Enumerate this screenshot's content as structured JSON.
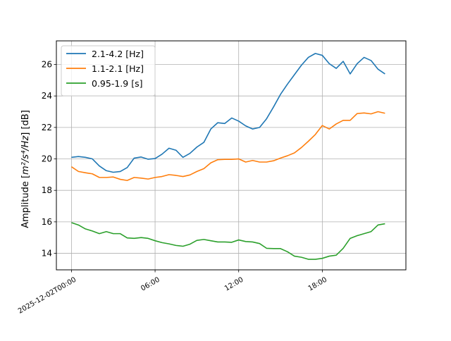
{
  "chart_data": {
    "type": "line",
    "ylabel_main": "Amplitude [",
    "ylabel_math": "m²/s⁴/Hz",
    "ylabel_unit": "] [dB]",
    "xlabel": "",
    "x_axis_type": "datetime",
    "x_ticks": [
      {
        "value": "2025-12-02T00:00",
        "label": "2025-12-02T00:00"
      },
      {
        "value": "2025-12-02T06:00",
        "label": "06:00"
      },
      {
        "value": "2025-12-02T12:00",
        "label": "12:00"
      },
      {
        "value": "2025-12-02T18:00",
        "label": "18:00"
      }
    ],
    "xlim": [
      "2025-12-01T22:55",
      "2025-12-03T00:00"
    ],
    "ylim": [
      12.95,
      27.5
    ],
    "y_ticks": [
      14,
      16,
      18,
      20,
      22,
      24,
      26
    ],
    "grid": true,
    "legend_position": "upper-left",
    "x": [
      "2025-12-02T00:00",
      "2025-12-02T00:30",
      "2025-12-02T01:00",
      "2025-12-02T01:30",
      "2025-12-02T02:00",
      "2025-12-02T02:30",
      "2025-12-02T03:00",
      "2025-12-02T03:30",
      "2025-12-02T04:00",
      "2025-12-02T04:30",
      "2025-12-02T05:00",
      "2025-12-02T05:30",
      "2025-12-02T06:00",
      "2025-12-02T06:30",
      "2025-12-02T07:00",
      "2025-12-02T07:30",
      "2025-12-02T08:00",
      "2025-12-02T08:30",
      "2025-12-02T09:00",
      "2025-12-02T09:30",
      "2025-12-02T10:00",
      "2025-12-02T10:30",
      "2025-12-02T11:00",
      "2025-12-02T11:30",
      "2025-12-02T12:00",
      "2025-12-02T12:30",
      "2025-12-02T13:00",
      "2025-12-02T13:30",
      "2025-12-02T14:00",
      "2025-12-02T14:30",
      "2025-12-02T15:00",
      "2025-12-02T15:30",
      "2025-12-02T16:00",
      "2025-12-02T16:30",
      "2025-12-02T17:00",
      "2025-12-02T17:30",
      "2025-12-02T18:00",
      "2025-12-02T18:30",
      "2025-12-02T19:00",
      "2025-12-02T19:30",
      "2025-12-02T20:00",
      "2025-12-02T20:30",
      "2025-12-02T21:00",
      "2025-12-02T21:30",
      "2025-12-02T22:00",
      "2025-12-02T22:30"
    ],
    "series": [
      {
        "name": "2.1-4.2 [Hz]",
        "color": "#1f77b4",
        "values": [
          20.1,
          20.15,
          20.1,
          20.0,
          19.55,
          19.25,
          19.15,
          19.2,
          19.45,
          20.05,
          20.12,
          19.98,
          20.02,
          20.3,
          20.68,
          20.55,
          20.1,
          20.35,
          20.75,
          21.05,
          21.9,
          22.3,
          22.25,
          22.6,
          22.4,
          22.1,
          21.9,
          22.0,
          22.55,
          23.3,
          24.1,
          24.75,
          25.35,
          25.95,
          26.45,
          26.7,
          26.58,
          26.05,
          25.75,
          26.2,
          25.4,
          26.05,
          26.45,
          26.25,
          25.7,
          25.4
        ]
      },
      {
        "name": "1.1-2.1 [Hz]",
        "color": "#ff7f0e",
        "values": [
          19.5,
          19.2,
          19.12,
          19.05,
          18.82,
          18.82,
          18.85,
          18.7,
          18.63,
          18.82,
          18.78,
          18.72,
          18.82,
          18.88,
          19.0,
          18.95,
          18.88,
          18.98,
          19.2,
          19.38,
          19.75,
          19.95,
          19.97,
          19.97,
          20.0,
          19.8,
          19.9,
          19.8,
          19.8,
          19.88,
          20.05,
          20.2,
          20.38,
          20.72,
          21.12,
          21.55,
          22.12,
          21.9,
          22.22,
          22.45,
          22.45,
          22.88,
          22.92,
          22.86,
          23.0,
          22.9
        ]
      },
      {
        "name": "0.95-1.9 [s]",
        "color": "#2ca02c",
        "values": [
          15.95,
          15.8,
          15.55,
          15.42,
          15.25,
          15.38,
          15.25,
          15.25,
          14.98,
          14.95,
          15.0,
          14.95,
          14.8,
          14.68,
          14.6,
          14.5,
          14.45,
          14.58,
          14.82,
          14.88,
          14.8,
          14.72,
          14.72,
          14.7,
          14.85,
          14.75,
          14.72,
          14.62,
          14.32,
          14.3,
          14.3,
          14.1,
          13.82,
          13.75,
          13.62,
          13.62,
          13.68,
          13.82,
          13.88,
          14.32,
          14.95,
          15.12,
          15.25,
          15.38,
          15.8,
          15.88
        ]
      }
    ]
  }
}
